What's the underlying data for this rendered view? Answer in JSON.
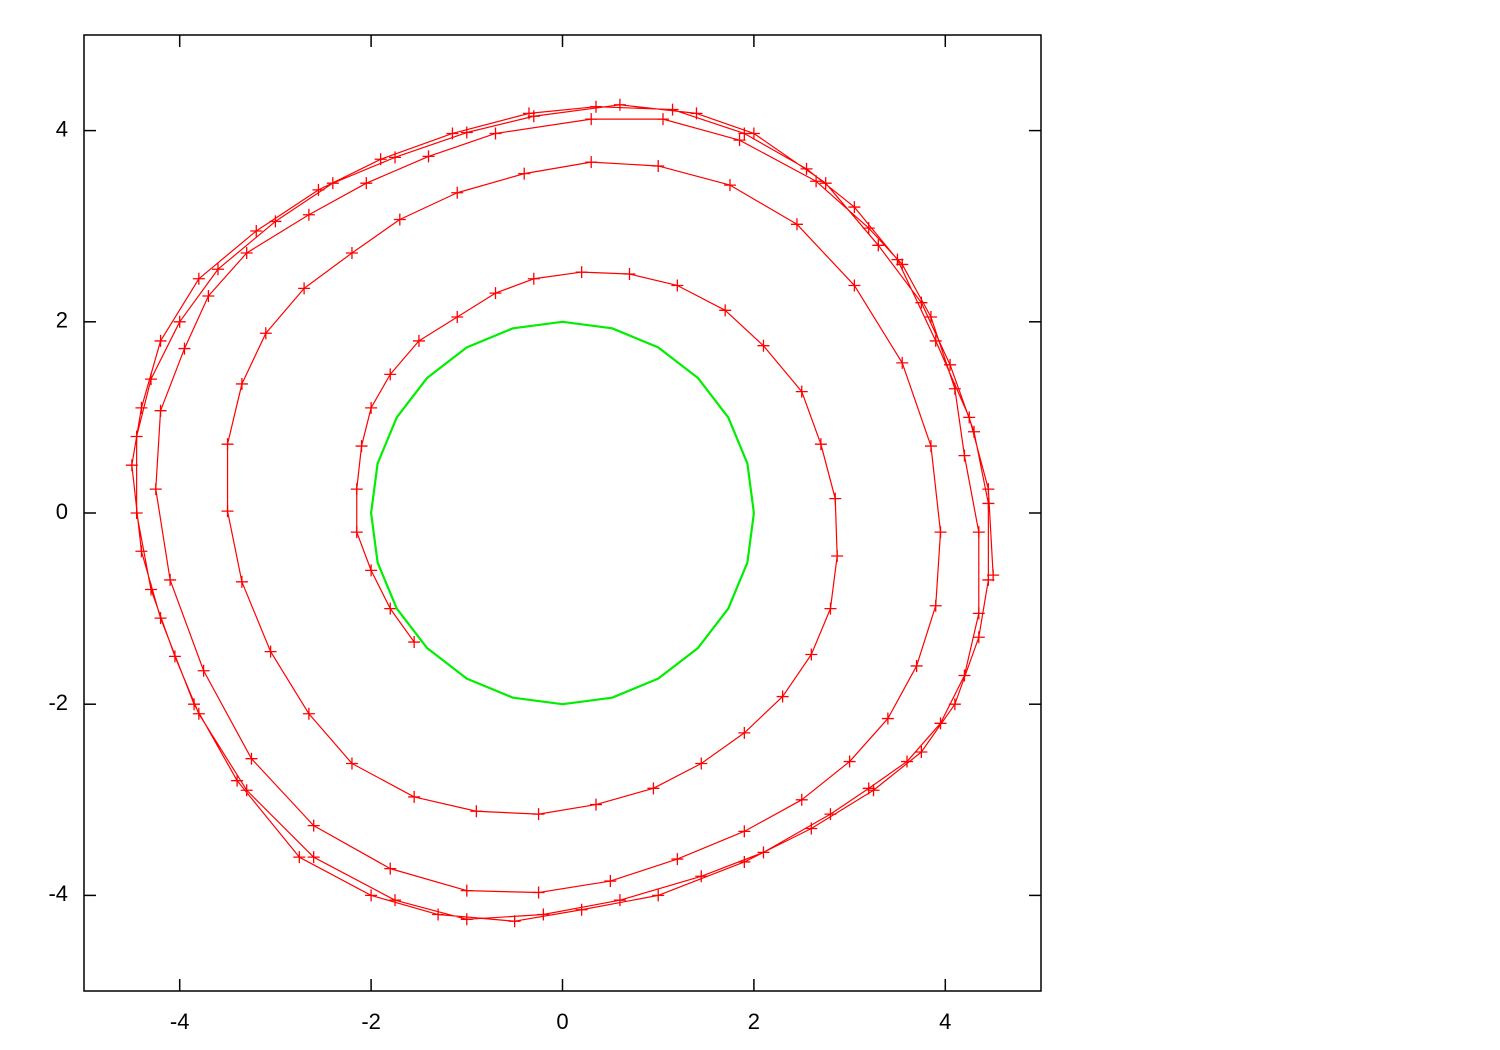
{
  "chart_data": {
    "type": "line",
    "xlim": [
      -5,
      5
    ],
    "ylim": [
      -5,
      5
    ],
    "xticks": [
      -4,
      -2,
      0,
      2,
      4
    ],
    "yticks": [
      -4,
      -2,
      0,
      2,
      4
    ],
    "grid": false,
    "series": [
      {
        "color": "#ff0000",
        "marker": "+",
        "x": [
          -1.55,
          -1.8,
          -2.0,
          -2.15,
          -2.15,
          -2.1,
          -2.0,
          -1.8,
          -1.5,
          -1.1,
          -0.7,
          -0.3,
          0.2,
          0.7,
          1.2,
          1.7,
          2.1,
          2.5,
          2.7,
          2.85,
          2.87,
          2.8,
          2.6,
          2.3,
          1.9,
          1.45,
          0.95,
          0.35,
          -0.25,
          -0.9,
          -1.55,
          -2.2,
          -2.65,
          -3.05,
          -3.35,
          -3.5,
          -3.5,
          -3.35,
          -3.1,
          -2.7,
          -2.2,
          -1.7,
          -1.1,
          -0.4,
          0.3,
          1.0,
          1.75,
          2.45,
          3.05,
          3.55,
          3.85,
          3.95,
          3.9,
          3.7,
          3.4,
          3.0,
          2.5,
          1.9,
          1.2,
          0.5,
          -0.25,
          -1.0,
          -1.8,
          -2.6,
          -3.25,
          -3.75,
          -4.1,
          -4.25,
          -4.2,
          -3.95,
          -3.7,
          -3.3,
          -2.65,
          -2.05,
          -1.4,
          -0.7,
          0.3,
          1.05,
          1.85,
          2.65,
          3.2,
          3.55,
          3.85,
          4.1,
          4.2,
          4.35,
          4.35,
          4.2,
          3.95,
          3.6,
          3.2,
          2.8,
          2.1,
          1.45,
          0.6,
          -0.2,
          -1.0,
          -1.75,
          -2.6,
          -3.3,
          -3.8,
          -4.05,
          -4.3,
          -4.45,
          -4.45,
          -4.3,
          -4.0,
          -3.6,
          -3.0,
          -2.4,
          -1.75,
          -1.0,
          -0.3,
          0.6,
          1.4,
          2.0,
          2.75,
          3.3,
          3.75,
          4.05,
          4.3,
          4.45,
          4.45,
          4.35,
          4.1,
          3.75,
          3.25,
          2.6,
          1.9,
          1.0,
          0.2,
          -0.5,
          -1.3,
          -2.0,
          -2.75,
          -3.4,
          -3.85,
          -4.2,
          -4.4,
          -4.5,
          -4.4,
          -4.2,
          -3.8,
          -3.2,
          -2.55,
          -1.9,
          -1.15,
          -0.35,
          0.35,
          1.15,
          1.9,
          2.55,
          3.05,
          3.5,
          3.9,
          4.25,
          4.45,
          4.5
        ],
        "values": [
          -1.35,
          -1.0,
          -0.6,
          -0.2,
          0.25,
          0.7,
          1.1,
          1.45,
          1.8,
          2.05,
          2.3,
          2.45,
          2.52,
          2.5,
          2.38,
          2.12,
          1.75,
          1.27,
          0.72,
          0.15,
          -0.45,
          -1.0,
          -1.48,
          -1.92,
          -2.3,
          -2.62,
          -2.88,
          -3.05,
          -3.15,
          -3.12,
          -2.97,
          -2.62,
          -2.1,
          -1.45,
          -0.72,
          0.02,
          0.72,
          1.35,
          1.88,
          2.35,
          2.72,
          3.07,
          3.35,
          3.55,
          3.67,
          3.63,
          3.43,
          3.02,
          2.38,
          1.57,
          0.7,
          -0.2,
          -0.97,
          -1.6,
          -2.15,
          -2.6,
          -3.0,
          -3.33,
          -3.62,
          -3.85,
          -3.97,
          -3.95,
          -3.72,
          -3.27,
          -2.57,
          -1.65,
          -0.7,
          0.25,
          1.07,
          1.72,
          2.27,
          2.72,
          3.12,
          3.45,
          3.73,
          3.97,
          4.12,
          4.12,
          3.9,
          3.47,
          2.98,
          2.6,
          2.05,
          1.3,
          0.6,
          -0.2,
          -1.05,
          -1.7,
          -2.2,
          -2.6,
          -2.88,
          -3.15,
          -3.55,
          -3.8,
          -4.05,
          -4.2,
          -4.25,
          -4.05,
          -3.6,
          -2.9,
          -2.1,
          -1.5,
          -0.8,
          0.0,
          0.8,
          1.4,
          2.0,
          2.55,
          3.05,
          3.45,
          3.72,
          3.98,
          4.15,
          4.27,
          4.18,
          3.97,
          3.45,
          2.8,
          2.2,
          1.55,
          0.85,
          0.1,
          -0.7,
          -1.3,
          -2.0,
          -2.5,
          -2.9,
          -3.3,
          -3.65,
          -4.0,
          -4.15,
          -4.27,
          -4.2,
          -4.0,
          -3.6,
          -2.8,
          -2.0,
          -1.1,
          -0.4,
          0.5,
          1.1,
          1.8,
          2.45,
          2.95,
          3.38,
          3.7,
          3.97,
          4.18,
          4.25,
          4.22,
          3.97,
          3.6,
          3.2,
          2.65,
          1.8,
          1.0,
          0.25,
          -0.65
        ]
      },
      {
        "color": "#00ee00",
        "x": [
          2,
          1.932,
          1.732,
          1.414,
          1,
          0.518,
          0,
          -0.518,
          -1,
          -1.414,
          -1.732,
          -1.932,
          -2,
          -1.932,
          -1.732,
          -1.414,
          -1,
          -0.518,
          0,
          0.518,
          1,
          1.414,
          1.732,
          1.932,
          2
        ],
        "values": [
          0,
          0.518,
          1,
          1.414,
          1.732,
          1.932,
          2,
          1.932,
          1.732,
          1.414,
          1,
          0.518,
          0,
          -0.518,
          -1,
          -1.414,
          -1.732,
          -1.932,
          -2,
          -1.932,
          -1.732,
          -1.414,
          -1,
          -0.518,
          0
        ]
      }
    ]
  }
}
